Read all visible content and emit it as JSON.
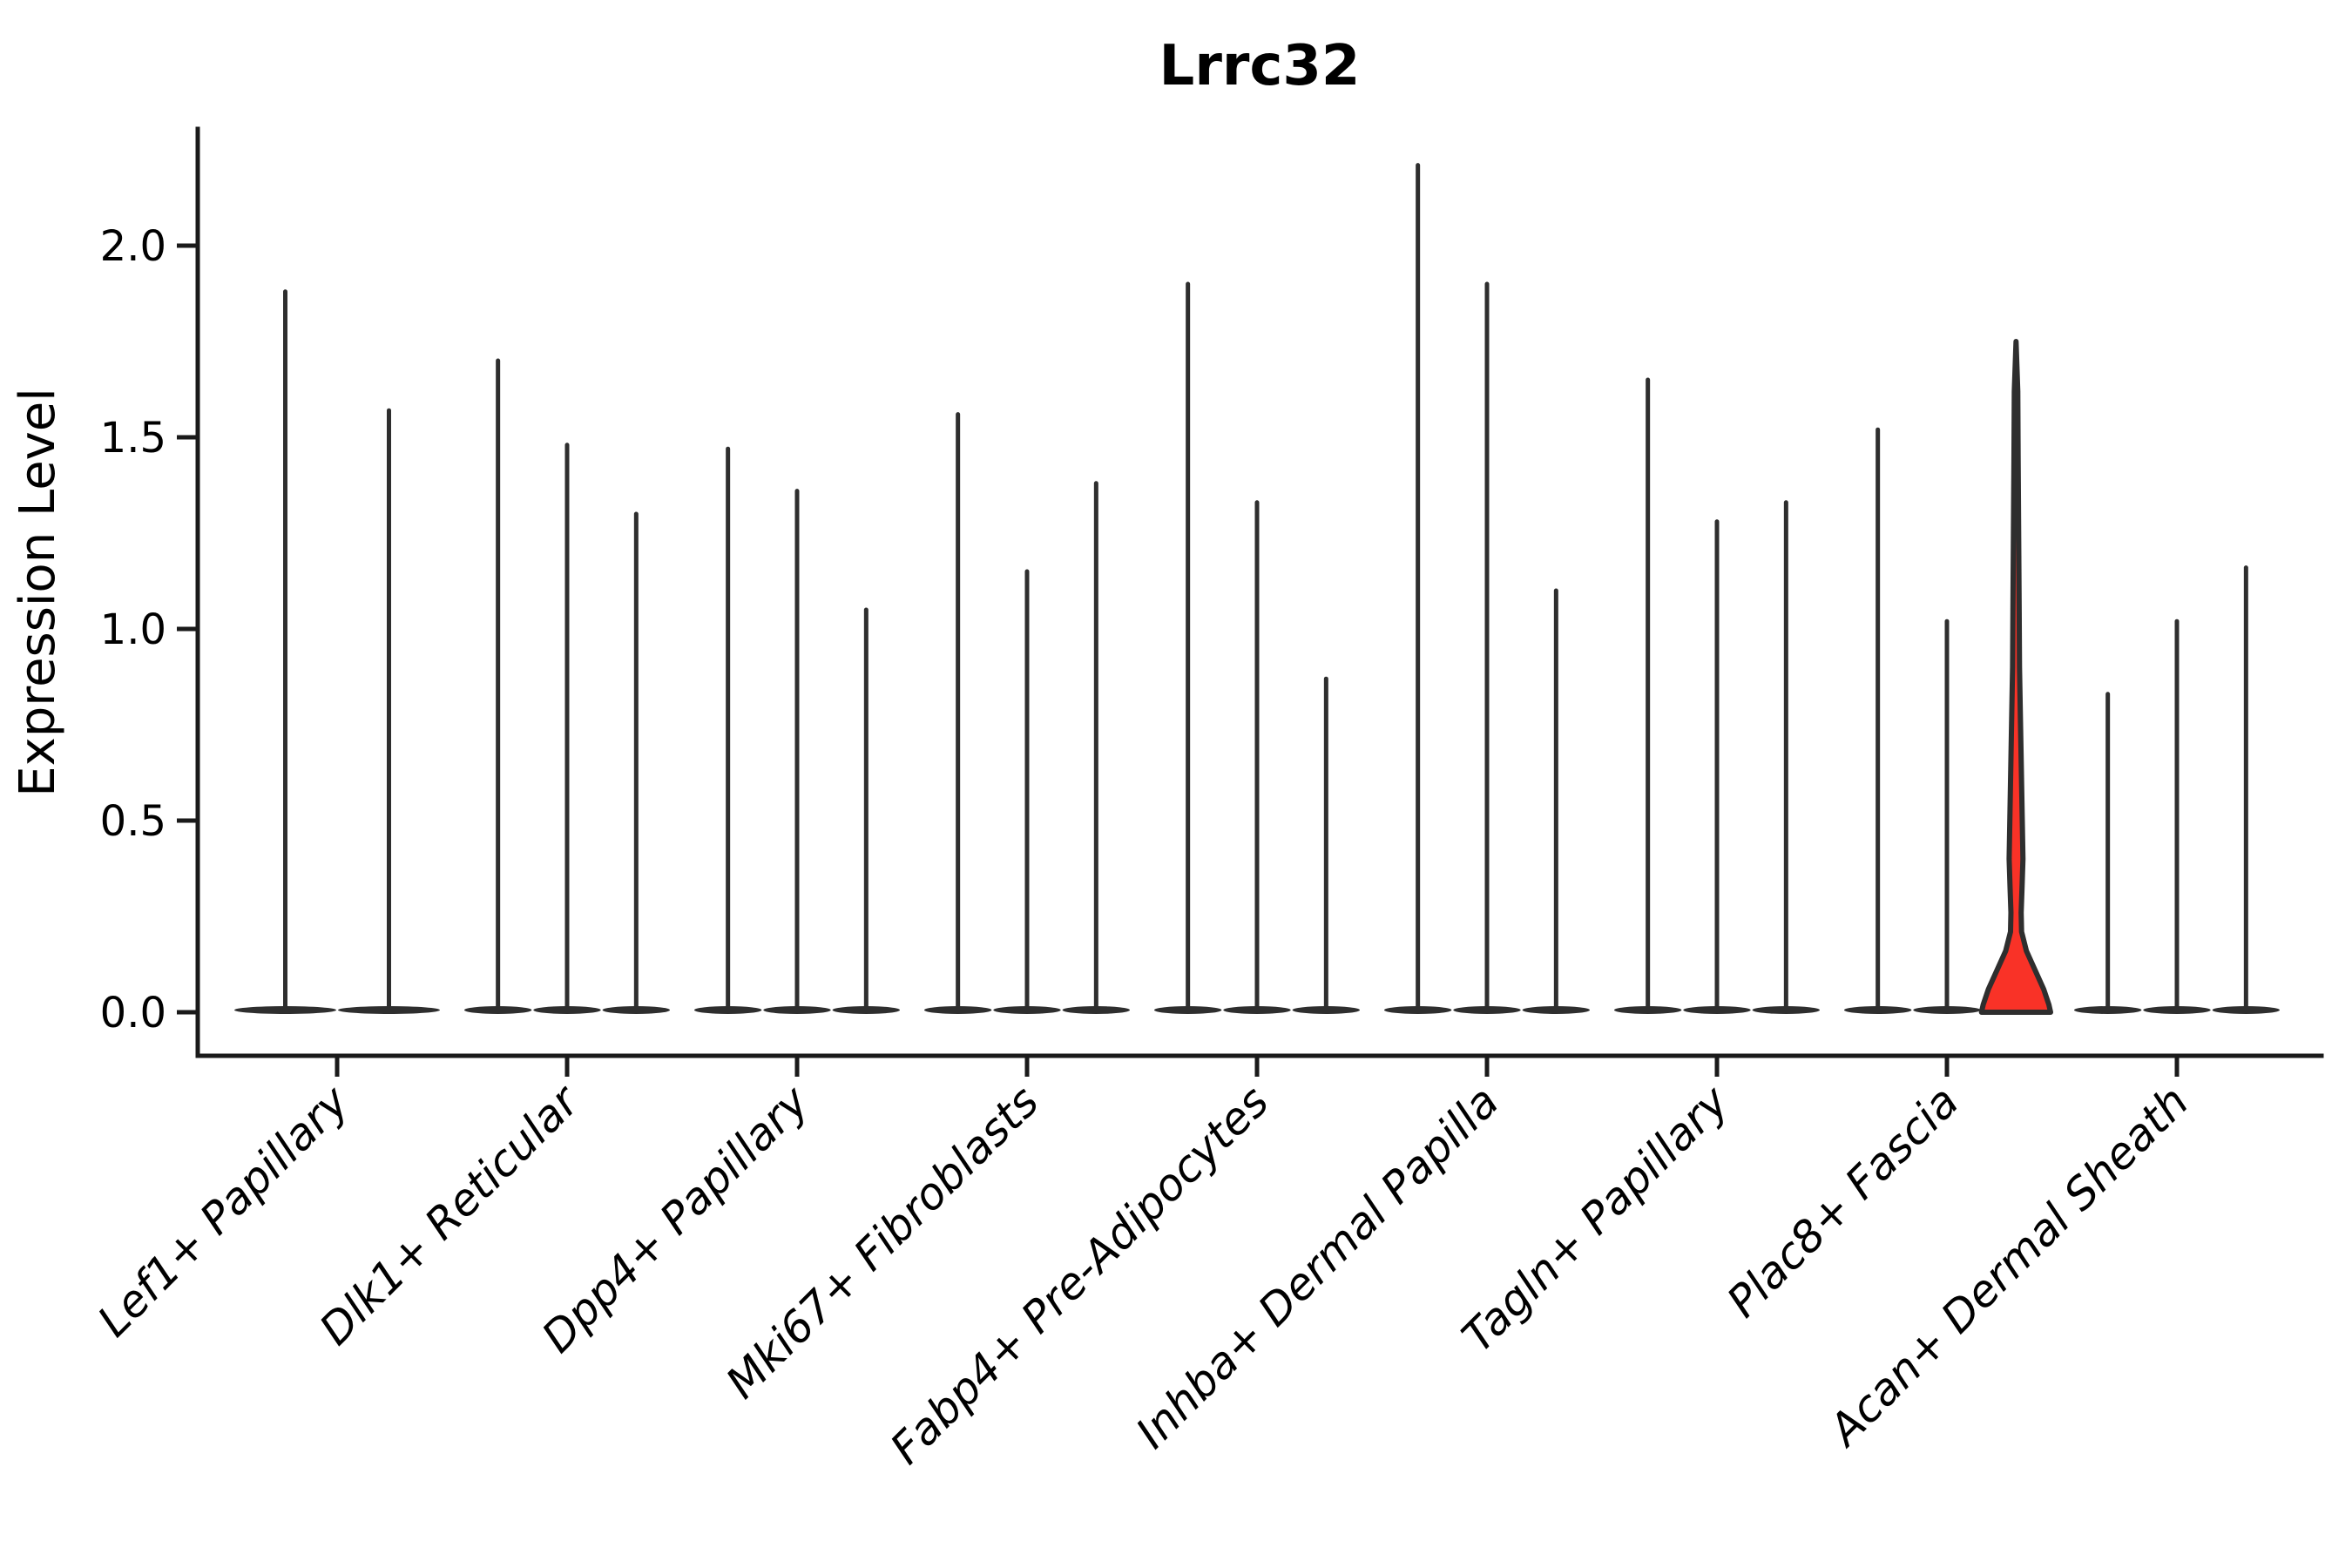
{
  "figure": {
    "background": "#ffffff",
    "axis_color": "#1a1a1a",
    "violin_color": "#2e2e2e",
    "highlight_color": "#f93227"
  },
  "chart_data": {
    "type": "violin",
    "title": "Lrrc32",
    "xlabel": "",
    "ylabel": "Expression Level",
    "ylim": [
      0,
      2.3
    ],
    "grid": false,
    "legend": "none",
    "yticks": [
      {
        "v": 0.0,
        "label": "0.0"
      },
      {
        "v": 0.5,
        "label": "0.5"
      },
      {
        "v": 1.0,
        "label": "1.0"
      },
      {
        "v": 1.5,
        "label": "1.5"
      },
      {
        "v": 2.0,
        "label": "2.0"
      }
    ],
    "categories": [
      "Lef1+ Papillary",
      "Dlk1+ Reticular",
      "Dpp4+ Papillary",
      "Mki67+ Fibroblasts",
      "Fabp4+ Pre-Adipocytes",
      "Inhba+ Dermal Papilla",
      "Tagln+ Papillary",
      "Plac8+ Fascia",
      "Acan+ Dermal Sheath"
    ],
    "series": [
      {
        "category": "Lef1+ Papillary",
        "violins": [
          {
            "max": 1.88
          },
          {
            "max": 1.57
          }
        ]
      },
      {
        "category": "Dlk1+ Reticular",
        "violins": [
          {
            "max": 1.7
          },
          {
            "max": 1.48
          },
          {
            "max": 1.3
          }
        ]
      },
      {
        "category": "Dpp4+ Papillary",
        "violins": [
          {
            "max": 1.47
          },
          {
            "max": 1.36
          },
          {
            "max": 1.05
          }
        ]
      },
      {
        "category": "Mki67+ Fibroblasts",
        "violins": [
          {
            "max": 1.56
          },
          {
            "max": 1.15
          },
          {
            "max": 1.38
          }
        ]
      },
      {
        "category": "Fabp4+ Pre-Adipocytes",
        "violins": [
          {
            "max": 1.9
          },
          {
            "max": 1.33
          },
          {
            "max": 0.87
          }
        ]
      },
      {
        "category": "Inhba+ Dermal Papilla",
        "violins": [
          {
            "max": 2.21
          },
          {
            "max": 1.9
          },
          {
            "max": 1.1
          }
        ]
      },
      {
        "category": "Tagln+ Papillary",
        "violins": [
          {
            "max": 1.65
          },
          {
            "max": 1.28
          },
          {
            "max": 1.33
          }
        ]
      },
      {
        "category": "Plac8+ Fascia",
        "violins": [
          {
            "max": 1.52
          },
          {
            "max": 1.02
          },
          {
            "max": 1.75,
            "highlight": true
          }
        ]
      },
      {
        "category": "Acan+ Dermal Sheath",
        "violins": [
          {
            "max": 0.83
          },
          {
            "max": 1.02
          },
          {
            "max": 1.16
          }
        ]
      }
    ],
    "highlight_fill": "#f93227",
    "highlight_profile": [
      [
        1.75,
        0.0
      ],
      [
        1.62,
        0.05
      ],
      [
        1.45,
        0.06
      ],
      [
        1.25,
        0.075
      ],
      [
        1.05,
        0.09
      ],
      [
        0.9,
        0.1
      ],
      [
        0.75,
        0.13
      ],
      [
        0.6,
        0.16
      ],
      [
        0.5,
        0.18
      ],
      [
        0.4,
        0.2
      ],
      [
        0.33,
        0.175
      ],
      [
        0.26,
        0.148
      ],
      [
        0.21,
        0.16
      ],
      [
        0.16,
        0.3
      ],
      [
        0.11,
        0.55
      ],
      [
        0.06,
        0.8
      ],
      [
        0.02,
        0.95
      ],
      [
        0.0,
        1.0
      ]
    ]
  }
}
